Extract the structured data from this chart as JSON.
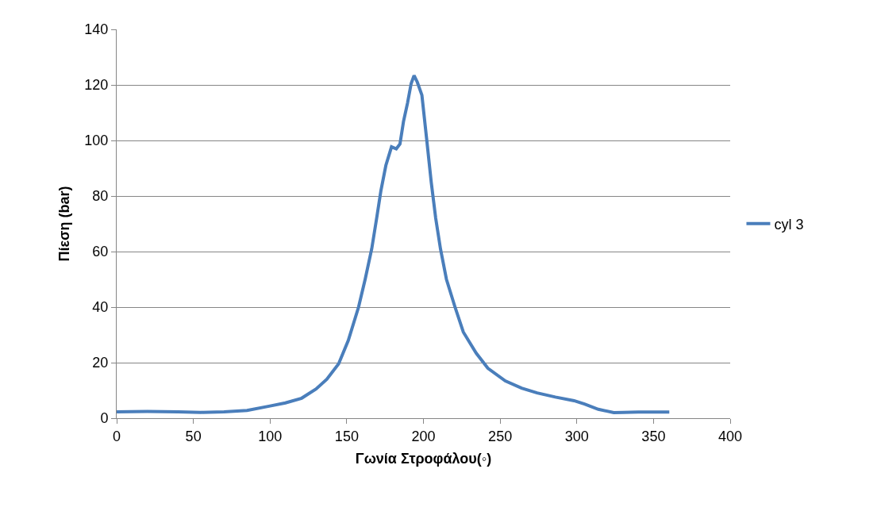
{
  "chart_data": {
    "type": "line",
    "xlabel": "Γωνία Στροφάλου(◦)",
    "ylabel": "Πίεση (bar)",
    "xlim": [
      0,
      400
    ],
    "xticks": [
      0,
      50,
      100,
      150,
      200,
      250,
      300,
      350,
      400
    ],
    "ylim": [
      0,
      140
    ],
    "yticks": [
      0,
      20,
      40,
      60,
      80,
      100,
      120,
      140
    ],
    "grid": "y",
    "legend": "right",
    "marker": "none",
    "line_style": "solid",
    "series": [
      {
        "name": "cyl 3",
        "color": "#4a7ebb",
        "x": [
          0,
          20,
          40,
          55,
          70,
          85,
          100,
          110,
          120.6,
          130,
          137,
          144.7,
          151,
          157.7,
          162,
          166.3,
          169.5,
          172.3,
          175.5,
          179.2,
          182.3,
          184.7,
          187,
          189.6,
          192,
          193.9,
          196,
          199,
          202,
          205.1,
          208,
          211.1,
          215,
          220.6,
          226,
          234.4,
          242,
          253.4,
          264,
          274.1,
          286,
          298.2,
          305,
          314,
          324.1,
          330,
          340,
          350,
          360.3
        ],
        "values": [
          2.3,
          2.4,
          2.3,
          2.1,
          2.3,
          2.8,
          4.4,
          5.5,
          7.2,
          10.5,
          14,
          19.6,
          28,
          40,
          50,
          61,
          72,
          82,
          91,
          97.7,
          97,
          98.7,
          106.8,
          113.4,
          120.5,
          123.4,
          121,
          116.3,
          101,
          84.9,
          72,
          61,
          50,
          40,
          31,
          23.4,
          18,
          13.4,
          10.8,
          9.1,
          7.6,
          6.3,
          5.1,
          3.2,
          2,
          2.1,
          2.2,
          2.2,
          2.2
        ]
      }
    ]
  }
}
